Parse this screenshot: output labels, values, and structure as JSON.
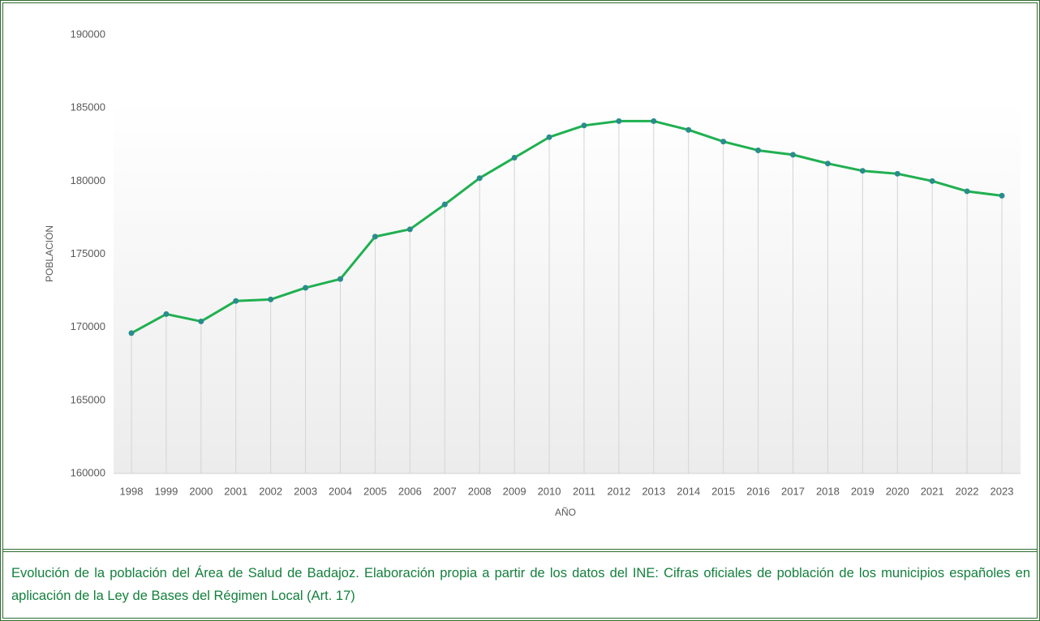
{
  "chart_data": {
    "type": "line",
    "y_label": "POBLACIÓN",
    "x_label": "AÑO",
    "caption": "Evolución de la población del Área de Salud de Badajoz. Elaboración propia a partir de los datos del INE: Cifras oficiales de población de los municipios españoles en aplicación de la Ley de Bases del Régimen Local (Art. 17)",
    "categories": [
      "1998",
      "1999",
      "2000",
      "2001",
      "2002",
      "2003",
      "2004",
      "2005",
      "2006",
      "2007",
      "2008",
      "2009",
      "2010",
      "2011",
      "2012",
      "2013",
      "2014",
      "2015",
      "2016",
      "2017",
      "2018",
      "2019",
      "2020",
      "2021",
      "2022",
      "2023"
    ],
    "series": [
      {
        "name": "Población",
        "color": "#1fb050",
        "marker_color": "#2a8c8c",
        "values": [
          169600,
          170900,
          170400,
          171800,
          171900,
          172700,
          173300,
          176200,
          176700,
          178400,
          180200,
          181600,
          183000,
          183800,
          184100,
          184100,
          183500,
          182700,
          182100,
          181800,
          181200,
          180700,
          180500,
          180000,
          179300,
          179000
        ]
      }
    ],
    "ylim": [
      160000,
      190000
    ],
    "yticks": [
      160000,
      165000,
      170000,
      175000,
      180000,
      185000,
      190000
    ],
    "drop_lines": true,
    "grid": false
  }
}
